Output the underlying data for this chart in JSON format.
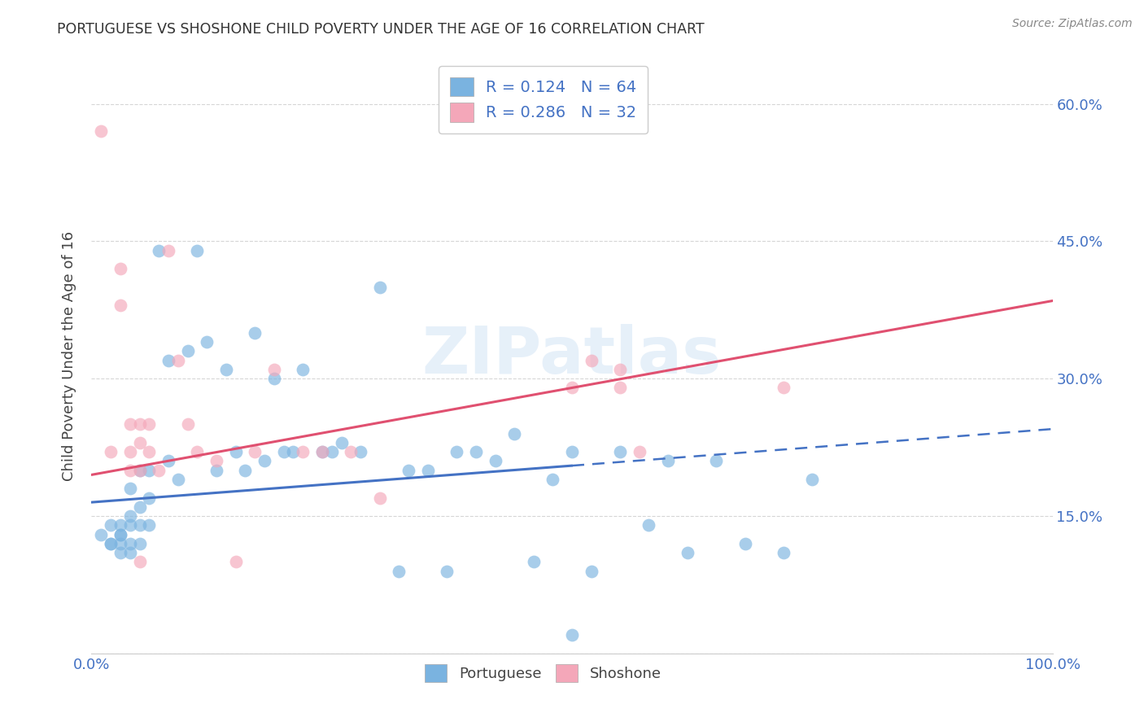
{
  "title": "PORTUGUESE VS SHOSHONE CHILD POVERTY UNDER THE AGE OF 16 CORRELATION CHART",
  "source": "Source: ZipAtlas.com",
  "ylabel": "Child Poverty Under the Age of 16",
  "xlim": [
    0,
    1.0
  ],
  "ylim": [
    0,
    0.65
  ],
  "yticks": [
    0.0,
    0.15,
    0.3,
    0.45,
    0.6
  ],
  "yticklabels": [
    "",
    "15.0%",
    "30.0%",
    "45.0%",
    "60.0%"
  ],
  "portuguese_R": "0.124",
  "portuguese_N": "64",
  "shoshone_R": "0.286",
  "shoshone_N": "32",
  "portuguese_color": "#7ab3e0",
  "shoshone_color": "#f4a7b9",
  "trend_portuguese_color": "#4472c4",
  "trend_shoshone_color": "#e05070",
  "watermark": "ZIPatlas",
  "grid_color": "#cccccc",
  "portuguese_x": [
    0.01,
    0.02,
    0.02,
    0.02,
    0.03,
    0.03,
    0.03,
    0.03,
    0.03,
    0.04,
    0.04,
    0.04,
    0.04,
    0.04,
    0.05,
    0.05,
    0.05,
    0.05,
    0.06,
    0.06,
    0.06,
    0.07,
    0.08,
    0.08,
    0.09,
    0.1,
    0.11,
    0.12,
    0.13,
    0.14,
    0.15,
    0.16,
    0.17,
    0.18,
    0.19,
    0.2,
    0.21,
    0.22,
    0.24,
    0.25,
    0.26,
    0.28,
    0.3,
    0.32,
    0.33,
    0.35,
    0.37,
    0.38,
    0.4,
    0.42,
    0.44,
    0.46,
    0.48,
    0.5,
    0.52,
    0.55,
    0.58,
    0.6,
    0.62,
    0.65,
    0.68,
    0.72,
    0.75,
    0.5
  ],
  "portuguese_y": [
    0.13,
    0.12,
    0.14,
    0.12,
    0.14,
    0.13,
    0.12,
    0.13,
    0.11,
    0.15,
    0.14,
    0.12,
    0.18,
    0.11,
    0.2,
    0.16,
    0.14,
    0.12,
    0.2,
    0.17,
    0.14,
    0.44,
    0.21,
    0.32,
    0.19,
    0.33,
    0.44,
    0.34,
    0.2,
    0.31,
    0.22,
    0.2,
    0.35,
    0.21,
    0.3,
    0.22,
    0.22,
    0.31,
    0.22,
    0.22,
    0.23,
    0.22,
    0.4,
    0.09,
    0.2,
    0.2,
    0.09,
    0.22,
    0.22,
    0.21,
    0.24,
    0.1,
    0.19,
    0.22,
    0.09,
    0.22,
    0.14,
    0.21,
    0.11,
    0.21,
    0.12,
    0.11,
    0.19,
    0.02
  ],
  "shoshone_x": [
    0.01,
    0.02,
    0.03,
    0.03,
    0.04,
    0.04,
    0.04,
    0.05,
    0.05,
    0.05,
    0.05,
    0.06,
    0.06,
    0.07,
    0.08,
    0.09,
    0.1,
    0.11,
    0.13,
    0.15,
    0.17,
    0.19,
    0.22,
    0.24,
    0.27,
    0.3,
    0.5,
    0.52,
    0.55,
    0.55,
    0.57,
    0.72
  ],
  "shoshone_y": [
    0.57,
    0.22,
    0.42,
    0.38,
    0.25,
    0.22,
    0.2,
    0.25,
    0.23,
    0.2,
    0.1,
    0.25,
    0.22,
    0.2,
    0.44,
    0.32,
    0.25,
    0.22,
    0.21,
    0.1,
    0.22,
    0.31,
    0.22,
    0.22,
    0.22,
    0.17,
    0.29,
    0.32,
    0.31,
    0.29,
    0.22,
    0.29
  ],
  "trend_port_x0": 0.0,
  "trend_port_y0": 0.165,
  "trend_port_x1": 0.5,
  "trend_port_y1": 0.205,
  "trend_port_dash_x0": 0.5,
  "trend_port_dash_y0": 0.205,
  "trend_port_dash_x1": 1.0,
  "trend_port_dash_y1": 0.245,
  "trend_sho_x0": 0.0,
  "trend_sho_y0": 0.195,
  "trend_sho_x1": 1.0,
  "trend_sho_y1": 0.385
}
